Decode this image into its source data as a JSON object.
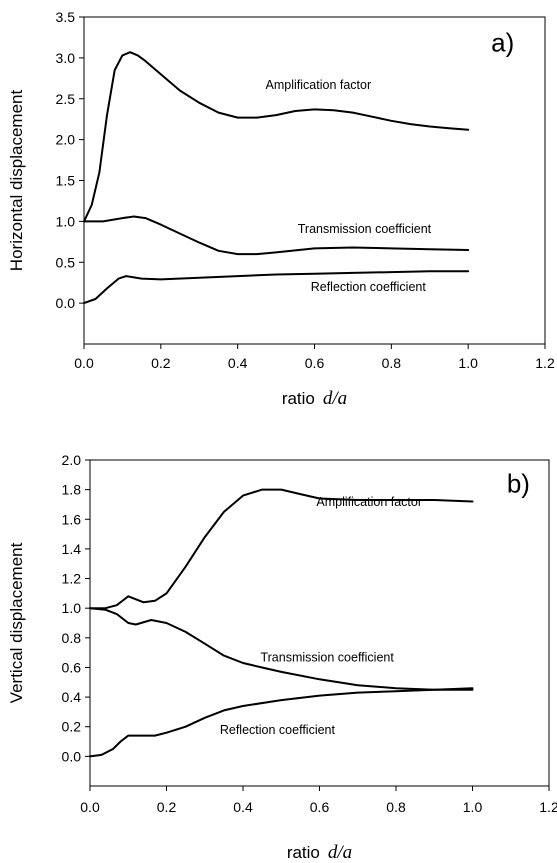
{
  "chart_data": [
    {
      "type": "line",
      "panel_label": "a)",
      "ylabel": "Horizontal displacement",
      "xlabel_text": "ratio",
      "xlabel_var": "d/a",
      "xlim": [
        0.0,
        1.2
      ],
      "ylim": [
        -0.5,
        3.5
      ],
      "xticks": [
        "0.0",
        "0.2",
        "0.4",
        "0.6",
        "0.8",
        "1.0",
        "1.2"
      ],
      "yticks": [
        "0.0",
        "0.5",
        "1.0",
        "1.5",
        "2.0",
        "2.5",
        "3.0",
        "3.5"
      ],
      "grid": false,
      "series": [
        {
          "name": "Amplification factor",
          "x": [
            0.0,
            0.02,
            0.04,
            0.06,
            0.08,
            0.1,
            0.12,
            0.14,
            0.16,
            0.2,
            0.25,
            0.3,
            0.35,
            0.4,
            0.45,
            0.5,
            0.55,
            0.6,
            0.65,
            0.7,
            0.75,
            0.8,
            0.85,
            0.9,
            0.95,
            1.0
          ],
          "y": [
            1.0,
            1.2,
            1.6,
            2.3,
            2.85,
            3.03,
            3.07,
            3.03,
            2.96,
            2.8,
            2.6,
            2.45,
            2.33,
            2.27,
            2.27,
            2.3,
            2.35,
            2.37,
            2.36,
            2.33,
            2.28,
            2.23,
            2.19,
            2.16,
            2.14,
            2.12
          ]
        },
        {
          "name": "Transmission coefficient",
          "x": [
            0.0,
            0.05,
            0.1,
            0.13,
            0.16,
            0.2,
            0.25,
            0.3,
            0.35,
            0.4,
            0.45,
            0.5,
            0.6,
            0.7,
            0.8,
            0.9,
            1.0
          ],
          "y": [
            1.0,
            1.0,
            1.04,
            1.06,
            1.04,
            0.96,
            0.85,
            0.74,
            0.64,
            0.6,
            0.6,
            0.62,
            0.67,
            0.68,
            0.67,
            0.66,
            0.65
          ]
        },
        {
          "name": "Reflection coefficient",
          "x": [
            0.0,
            0.03,
            0.06,
            0.09,
            0.11,
            0.15,
            0.2,
            0.3,
            0.4,
            0.5,
            0.6,
            0.7,
            0.8,
            0.9,
            1.0
          ],
          "y": [
            0.0,
            0.05,
            0.18,
            0.3,
            0.33,
            0.3,
            0.29,
            0.31,
            0.33,
            0.35,
            0.36,
            0.37,
            0.38,
            0.39,
            0.39
          ]
        }
      ]
    },
    {
      "type": "line",
      "panel_label": "b)",
      "ylabel": "Vertical displacement",
      "xlabel_text": "ratio",
      "xlabel_var": "d/a",
      "xlim": [
        0.0,
        1.2
      ],
      "ylim": [
        -0.2,
        2.0
      ],
      "xticks": [
        "0.0",
        "0.2",
        "0.4",
        "0.6",
        "0.8",
        "1.0",
        "1.2"
      ],
      "yticks": [
        "0.0",
        "0.2",
        "0.4",
        "0.6",
        "0.8",
        "1.0",
        "1.2",
        "1.4",
        "1.6",
        "1.8",
        "2.0"
      ],
      "grid": false,
      "series": [
        {
          "name": "Amplification factor",
          "x": [
            0.0,
            0.04,
            0.07,
            0.1,
            0.12,
            0.14,
            0.17,
            0.2,
            0.25,
            0.3,
            0.35,
            0.4,
            0.45,
            0.5,
            0.55,
            0.6,
            0.7,
            0.8,
            0.9,
            1.0
          ],
          "y": [
            1.0,
            1.0,
            1.02,
            1.08,
            1.06,
            1.04,
            1.05,
            1.1,
            1.28,
            1.48,
            1.65,
            1.76,
            1.8,
            1.8,
            1.77,
            1.74,
            1.73,
            1.73,
            1.73,
            1.72
          ]
        },
        {
          "name": "Transmission coefficient",
          "x": [
            0.0,
            0.04,
            0.07,
            0.1,
            0.12,
            0.16,
            0.2,
            0.25,
            0.3,
            0.35,
            0.4,
            0.45,
            0.5,
            0.6,
            0.7,
            0.8,
            0.9,
            1.0
          ],
          "y": [
            1.0,
            0.99,
            0.96,
            0.9,
            0.89,
            0.92,
            0.9,
            0.84,
            0.76,
            0.68,
            0.63,
            0.6,
            0.57,
            0.52,
            0.48,
            0.46,
            0.45,
            0.45
          ]
        },
        {
          "name": "Reflection coefficient",
          "x": [
            0.0,
            0.03,
            0.06,
            0.08,
            0.1,
            0.13,
            0.17,
            0.2,
            0.25,
            0.3,
            0.35,
            0.4,
            0.5,
            0.6,
            0.7,
            0.8,
            0.9,
            1.0
          ],
          "y": [
            0.0,
            0.01,
            0.05,
            0.1,
            0.14,
            0.14,
            0.14,
            0.16,
            0.2,
            0.26,
            0.31,
            0.34,
            0.38,
            0.41,
            0.43,
            0.44,
            0.45,
            0.46
          ]
        }
      ]
    }
  ]
}
